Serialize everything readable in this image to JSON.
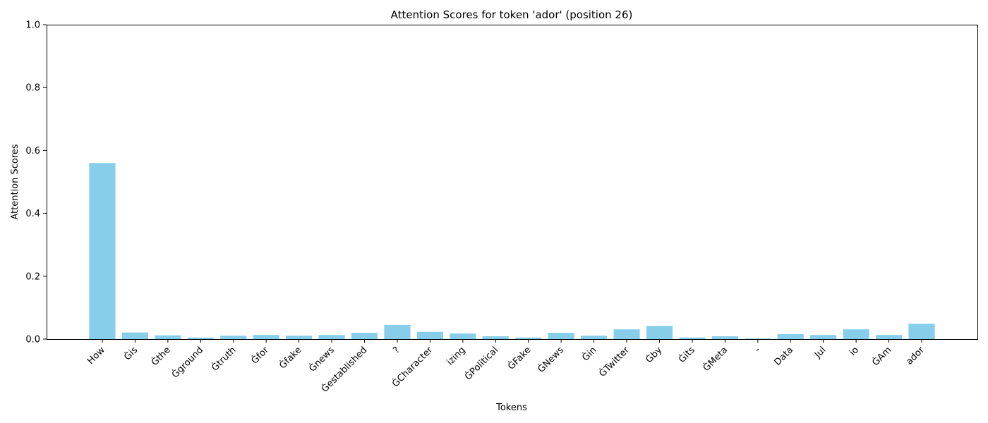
{
  "chart_data": {
    "type": "bar",
    "title": "Attention Scores for token 'ador' (position 26)",
    "xlabel": "Tokens",
    "ylabel": "Attention Scores",
    "ylim": [
      0,
      1.0
    ],
    "yticks": [
      "0.0",
      "0.2",
      "0.4",
      "0.6",
      "0.8",
      "1.0"
    ],
    "grid": false,
    "bar_color": "#87CEEB",
    "categories": [
      "How",
      "Ġis",
      "Ġthe",
      "Ġground",
      "Ġtruth",
      "Ġfor",
      "Ġfake",
      "Ġnews",
      "Ġestablished",
      "?",
      "ĠCharacter",
      "izing",
      "ĠPolitical",
      "ĠFake",
      "ĠNews",
      "Ġin",
      "ĠTwitter",
      "Ġby",
      "Ġits",
      "ĠMeta",
      "-",
      "Data",
      "Jul",
      "io",
      "ĠAm",
      "ador"
    ],
    "values": [
      0.56,
      0.021,
      0.012,
      0.005,
      0.011,
      0.013,
      0.011,
      0.013,
      0.02,
      0.045,
      0.023,
      0.018,
      0.009,
      0.005,
      0.02,
      0.011,
      0.031,
      0.042,
      0.005,
      0.009,
      0.002,
      0.016,
      0.013,
      0.031,
      0.013,
      0.049
    ]
  }
}
